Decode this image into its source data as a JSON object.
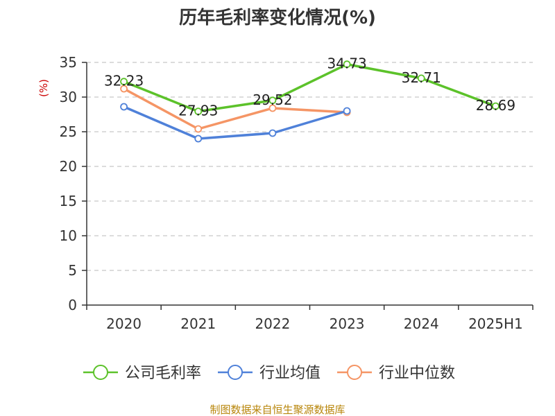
{
  "chart_data": {
    "type": "line",
    "title": "历年毛利率变化情况(%)",
    "ylabel": "(%)",
    "categories": [
      "2020",
      "2021",
      "2022",
      "2023",
      "2024",
      "2025H1"
    ],
    "ylim": [
      0,
      35
    ],
    "yticks": [
      0,
      5,
      10,
      15,
      20,
      25,
      30,
      35
    ],
    "grid": true,
    "legend_position": "bottom",
    "series": [
      {
        "name": "公司毛利率",
        "color": "#5cc22a",
        "values": [
          32.23,
          27.93,
          29.52,
          34.73,
          32.71,
          28.69
        ],
        "labels": [
          "32.23",
          "27.93",
          "29.52",
          "34.73",
          "32.71",
          "28.69"
        ]
      },
      {
        "name": "行业均值",
        "color": "#4f81d9",
        "values": [
          28.6,
          24.0,
          24.8,
          28.0,
          null,
          null
        ]
      },
      {
        "name": "行业中位数",
        "color": "#f59565",
        "values": [
          31.2,
          25.4,
          28.4,
          27.8,
          null,
          null
        ]
      }
    ]
  },
  "source_text": "制图数据来自恒生聚源数据库"
}
